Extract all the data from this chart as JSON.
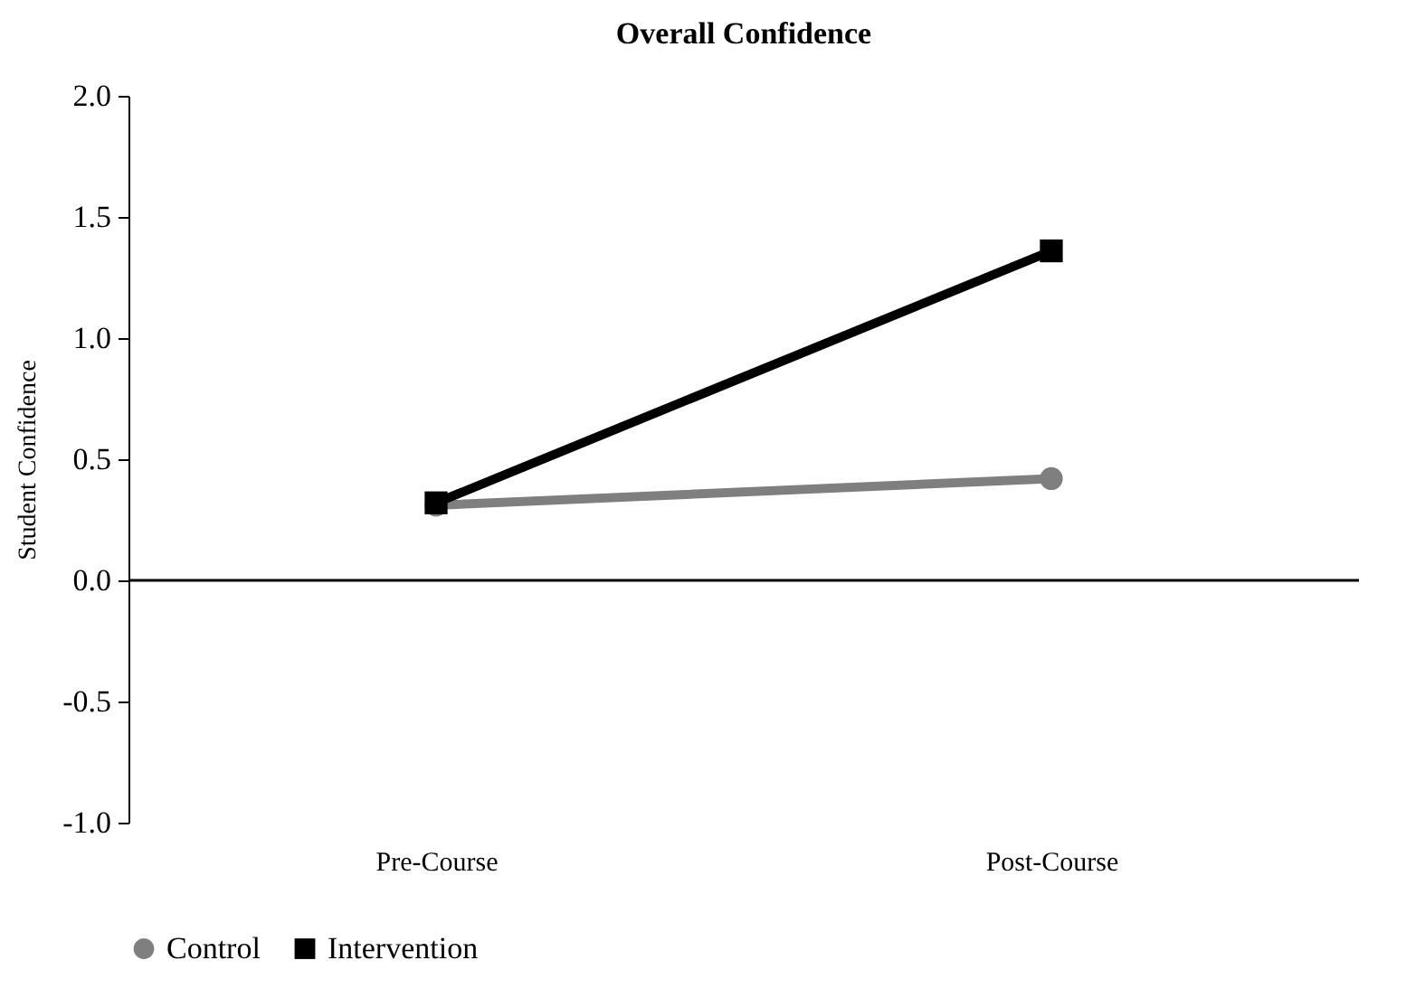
{
  "chart_data": {
    "type": "line",
    "title": "Overall Confidence",
    "ylabel": "Student Confidence",
    "categories": [
      "Pre-Course",
      "Post-Course"
    ],
    "series": [
      {
        "name": "Control",
        "color": "#7f7f7f",
        "marker": "circle",
        "values": [
          0.31,
          0.42
        ]
      },
      {
        "name": "Intervention",
        "color": "#000000",
        "marker": "square",
        "values": [
          0.32,
          1.36
        ]
      }
    ],
    "ylim": [
      -1.0,
      2.0
    ],
    "yticks": [
      {
        "value": -1,
        "label": "-1.0"
      },
      {
        "value": -0.5,
        "label": "-0.5"
      },
      {
        "value": 0,
        "label": "0.0"
      },
      {
        "value": 0.5,
        "label": "0.5"
      },
      {
        "value": 1,
        "label": "1.0"
      },
      {
        "value": 1.5,
        "label": "1.5"
      },
      {
        "value": 2,
        "label": "2.0"
      }
    ],
    "ref_lines": [
      {
        "axis": "y",
        "value": 0,
        "color": "#000000"
      }
    ],
    "legend": "bottom",
    "line_style": "solid"
  }
}
